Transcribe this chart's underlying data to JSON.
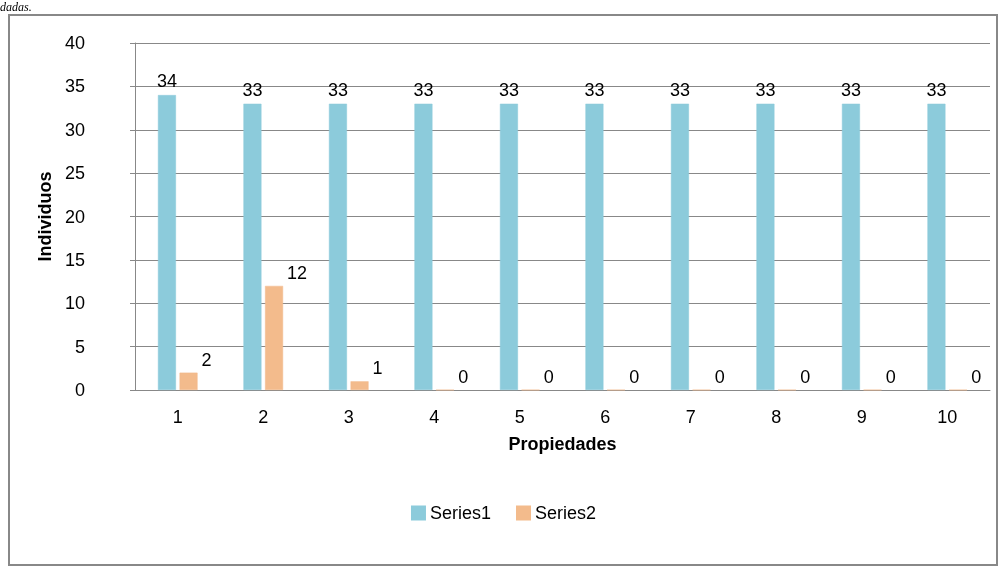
{
  "chart_data": {
    "type": "bar",
    "xlabel": "Propiedades",
    "ylabel": "Individuos",
    "categories": [
      "1",
      "2",
      "3",
      "4",
      "5",
      "6",
      "7",
      "8",
      "9",
      "10"
    ],
    "series": [
      {
        "name": "Series1",
        "color": "#8ccbdb",
        "values": [
          34,
          33,
          33,
          33,
          33,
          33,
          33,
          33,
          33,
          33
        ]
      },
      {
        "name": "Series2",
        "color": "#f3bb8c",
        "values": [
          2,
          12,
          1,
          0,
          0,
          0,
          0,
          0,
          0,
          0
        ]
      }
    ],
    "ylim": [
      0,
      40
    ],
    "yticks": [
      0,
      5,
      10,
      15,
      20,
      25,
      30,
      35,
      40
    ],
    "grid": "y",
    "legend": "bottom",
    "data_labels": true,
    "annotations": [
      "dadas."
    ]
  }
}
